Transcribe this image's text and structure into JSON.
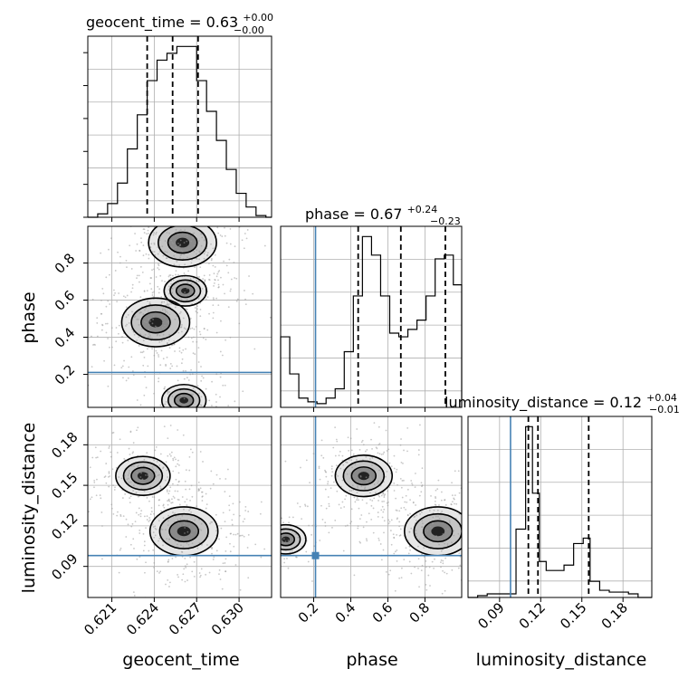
{
  "chart_data": {
    "type": "corner",
    "parameters": [
      "geocent_time",
      "phase",
      "luminosity_distance"
    ],
    "axis_labels": {
      "geocent_time": "geocent_time",
      "phase": "phase",
      "luminosity_distance": "luminosity_distance"
    },
    "titles": {
      "geocent_time": {
        "prefix": "geocent_time = 0.63",
        "plus": "+0.00",
        "minus": "−0.00"
      },
      "phase": {
        "prefix": "phase = 0.67",
        "plus": "+0.24",
        "minus": "−0.23"
      },
      "luminosity_distance": {
        "prefix": "luminosity_distance = 0.12",
        "plus": "+0.04",
        "minus": "−0.01"
      }
    },
    "ranges": {
      "geocent_time": [
        0.6193,
        0.6323
      ],
      "phase": [
        0.022,
        0.998
      ],
      "luminosity_distance": [
        0.067,
        0.201
      ]
    },
    "ticks": {
      "geocent_time": {
        "values": [
          0.621,
          0.624,
          0.627,
          0.63
        ],
        "labels": [
          "0.621",
          "0.624",
          "0.627",
          "0.630"
        ]
      },
      "phase": {
        "values": [
          0.2,
          0.4,
          0.6,
          0.8
        ],
        "labels": [
          "0.2",
          "0.4",
          "0.6",
          "0.8"
        ]
      },
      "luminosity_distance": {
        "values": [
          0.09,
          0.12,
          0.15,
          0.18
        ],
        "labels": [
          "0.09",
          "0.12",
          "0.15",
          "0.18"
        ]
      }
    },
    "truths": {
      "phase": 0.21,
      "luminosity_distance": 0.098
    },
    "quantiles": {
      "geocent_time": [
        0.6235,
        0.6253,
        0.6271
      ],
      "phase": [
        0.44,
        0.67,
        0.91
      ],
      "luminosity_distance": [
        0.111,
        0.118,
        0.155
      ]
    },
    "histograms": {
      "geocent_time": {
        "edges": [
          0.6193,
          0.62,
          0.6207,
          0.6214,
          0.6221,
          0.6228,
          0.6235,
          0.6242,
          0.6249,
          0.6256,
          0.6263,
          0.627,
          0.6277,
          0.6284,
          0.6291,
          0.6298,
          0.6305,
          0.6312,
          0.6319,
          0.6323
        ],
        "values": [
          0,
          2,
          8,
          20,
          40,
          60,
          80,
          92,
          96,
          100,
          100,
          80,
          62,
          45,
          28,
          14,
          6,
          1,
          0
        ]
      },
      "phase": {
        "edges": [
          0.022,
          0.071,
          0.12,
          0.169,
          0.218,
          0.267,
          0.316,
          0.365,
          0.414,
          0.463,
          0.512,
          0.561,
          0.61,
          0.659,
          0.708,
          0.757,
          0.806,
          0.855,
          0.904,
          0.953,
          0.998
        ],
        "values": [
          38,
          18,
          5,
          3,
          2,
          5,
          10,
          30,
          60,
          92,
          82,
          60,
          40,
          38,
          42,
          47,
          60,
          80,
          82,
          66
        ]
      },
      "luminosity_distance": {
        "edges": [
          0.067,
          0.074,
          0.081,
          0.088,
          0.095,
          0.102,
          0.109,
          0.114,
          0.119,
          0.124,
          0.13,
          0.137,
          0.144,
          0.151,
          0.156,
          0.163,
          0.17,
          0.177,
          0.184,
          0.191,
          0.201
        ],
        "values": [
          0,
          1,
          2,
          2,
          2,
          38,
          95,
          58,
          20,
          15,
          15,
          18,
          30,
          33,
          9,
          4,
          3,
          3,
          2,
          0
        ]
      }
    },
    "density_2d": {
      "geocent_time_vs_phase": [
        {
          "x": 0.626,
          "y": 0.91,
          "weight": 1.0
        },
        {
          "x": 0.6241,
          "y": 0.48,
          "weight": 1.0
        },
        {
          "x": 0.6262,
          "y": 0.65,
          "weight": 0.25
        },
        {
          "x": 0.6261,
          "y": 0.06,
          "weight": 0.3
        }
      ],
      "geocent_time_vs_luminosity_distance": [
        {
          "x": 0.6261,
          "y": 0.116,
          "weight": 1.0
        },
        {
          "x": 0.6232,
          "y": 0.157,
          "weight": 0.6
        }
      ],
      "phase_vs_luminosity_distance": [
        {
          "x": 0.47,
          "y": 0.157,
          "weight": 0.7
        },
        {
          "x": 0.87,
          "y": 0.116,
          "weight": 1.0
        },
        {
          "x": 0.05,
          "y": 0.11,
          "weight": 0.2
        }
      ]
    },
    "grid": true
  }
}
